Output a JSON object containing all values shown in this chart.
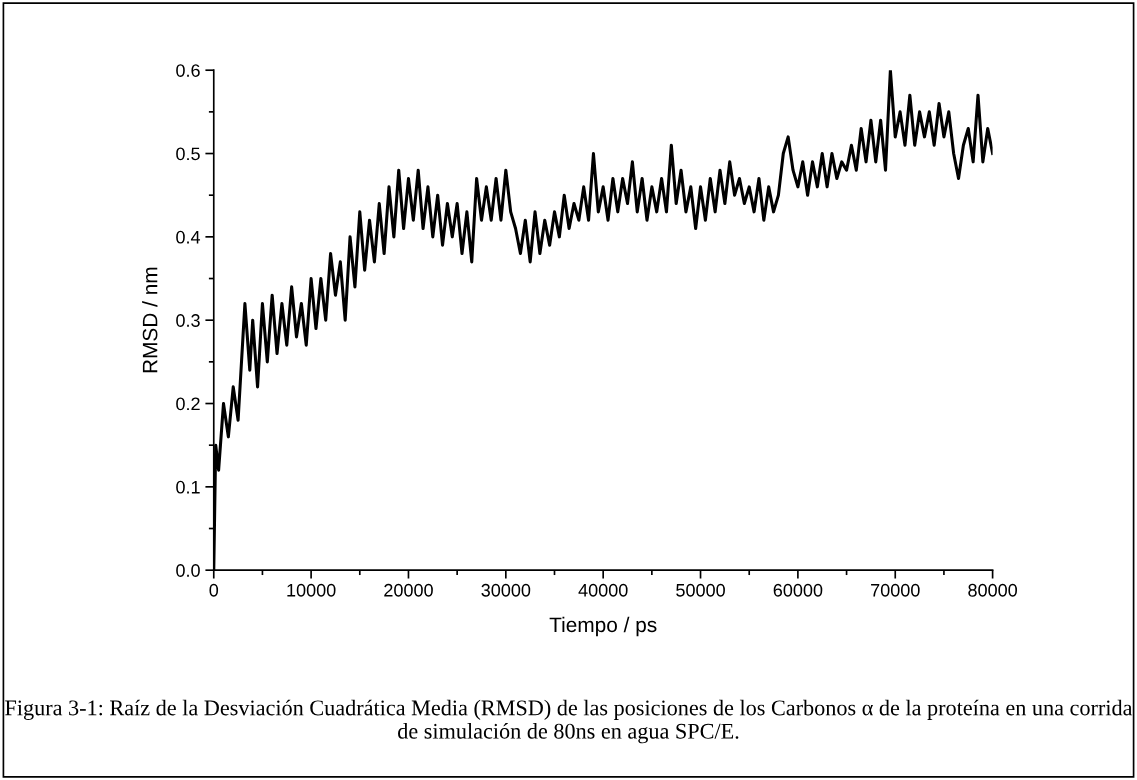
{
  "chart_data": {
    "type": "line",
    "xlabel": "Tiempo / ps",
    "ylabel": "RMSD / nm",
    "annotations": [
      "Figura 3-1: Raíz de la Desviación Cuadrática Media (RMSD) de las posiciones de los Carbonos α de la proteína en una corrida de simulación de 80ns en agua SPC/E."
    ],
    "xlim": [
      0,
      80000
    ],
    "ylim": [
      0.0,
      0.6
    ],
    "xticks": [
      0,
      10000,
      20000,
      30000,
      40000,
      50000,
      60000,
      70000,
      80000
    ],
    "yticks": [
      {
        "value": 0.0,
        "label": "0.0"
      },
      0.1,
      0.2,
      0.3,
      0.4,
      0.5,
      0.6
    ],
    "grid": false,
    "marker": "none",
    "line_style": "solid",
    "series": [
      {
        "color": "#000000",
        "x": [
          0,
          200,
          500,
          1000,
          1500,
          2000,
          2500,
          3000,
          3200,
          3700,
          4000,
          4500,
          5000,
          5500,
          6000,
          6500,
          7000,
          7500,
          8000,
          8500,
          9000,
          9500,
          10000,
          10500,
          11000,
          11500,
          12000,
          12500,
          13000,
          13500,
          14000,
          14500,
          15000,
          15500,
          16000,
          16500,
          17000,
          17500,
          18000,
          18500,
          19000,
          19500,
          20000,
          20500,
          21000,
          21500,
          22000,
          22500,
          23000,
          23500,
          24000,
          24500,
          25000,
          25500,
          26000,
          26500,
          27000,
          27500,
          28000,
          28500,
          29000,
          29500,
          30000,
          30500,
          31000,
          31500,
          32000,
          32500,
          33000,
          33500,
          34000,
          34500,
          35000,
          35500,
          36000,
          36500,
          37000,
          37500,
          38000,
          38500,
          39000,
          39500,
          40000,
          40500,
          41000,
          41500,
          42000,
          42500,
          43000,
          43500,
          44000,
          44500,
          45000,
          45500,
          46000,
          46500,
          47000,
          47500,
          48000,
          48500,
          49000,
          49500,
          50000,
          50500,
          51000,
          51500,
          52000,
          52500,
          53000,
          53500,
          54000,
          54500,
          55000,
          55500,
          56000,
          56500,
          57000,
          57500,
          58000,
          58500,
          59000,
          59500,
          60000,
          60500,
          61000,
          61500,
          62000,
          62500,
          63000,
          63500,
          64000,
          64500,
          65000,
          65500,
          66000,
          66500,
          67000,
          67500,
          68000,
          68500,
          69000,
          69500,
          70000,
          70500,
          71000,
          71500,
          72000,
          72500,
          73000,
          73500,
          74000,
          74500,
          75000,
          75500,
          76000,
          76500,
          77000,
          77500,
          78000,
          78500,
          79000,
          79500,
          80000
        ],
        "values": [
          0.0,
          0.15,
          0.12,
          0.2,
          0.16,
          0.22,
          0.18,
          0.28,
          0.32,
          0.24,
          0.3,
          0.22,
          0.32,
          0.25,
          0.33,
          0.26,
          0.32,
          0.27,
          0.34,
          0.28,
          0.32,
          0.27,
          0.35,
          0.29,
          0.35,
          0.3,
          0.38,
          0.33,
          0.37,
          0.3,
          0.4,
          0.34,
          0.43,
          0.36,
          0.42,
          0.37,
          0.44,
          0.38,
          0.46,
          0.4,
          0.48,
          0.41,
          0.47,
          0.42,
          0.48,
          0.41,
          0.46,
          0.4,
          0.45,
          0.39,
          0.44,
          0.4,
          0.44,
          0.38,
          0.43,
          0.37,
          0.47,
          0.42,
          0.46,
          0.42,
          0.47,
          0.42,
          0.48,
          0.43,
          0.41,
          0.38,
          0.42,
          0.37,
          0.43,
          0.38,
          0.42,
          0.39,
          0.43,
          0.4,
          0.45,
          0.41,
          0.44,
          0.42,
          0.46,
          0.42,
          0.5,
          0.43,
          0.46,
          0.42,
          0.47,
          0.43,
          0.47,
          0.44,
          0.49,
          0.43,
          0.47,
          0.42,
          0.46,
          0.43,
          0.47,
          0.43,
          0.51,
          0.44,
          0.48,
          0.43,
          0.46,
          0.41,
          0.46,
          0.42,
          0.47,
          0.43,
          0.48,
          0.44,
          0.49,
          0.45,
          0.47,
          0.44,
          0.46,
          0.43,
          0.47,
          0.42,
          0.46,
          0.43,
          0.45,
          0.5,
          0.52,
          0.48,
          0.46,
          0.49,
          0.45,
          0.49,
          0.46,
          0.5,
          0.46,
          0.5,
          0.47,
          0.49,
          0.48,
          0.51,
          0.48,
          0.53,
          0.49,
          0.54,
          0.49,
          0.54,
          0.48,
          0.6,
          0.52,
          0.55,
          0.51,
          0.57,
          0.51,
          0.55,
          0.52,
          0.55,
          0.51,
          0.56,
          0.52,
          0.55,
          0.5,
          0.47,
          0.51,
          0.53,
          0.49,
          0.57,
          0.49,
          0.53,
          0.5
        ]
      }
    ]
  }
}
